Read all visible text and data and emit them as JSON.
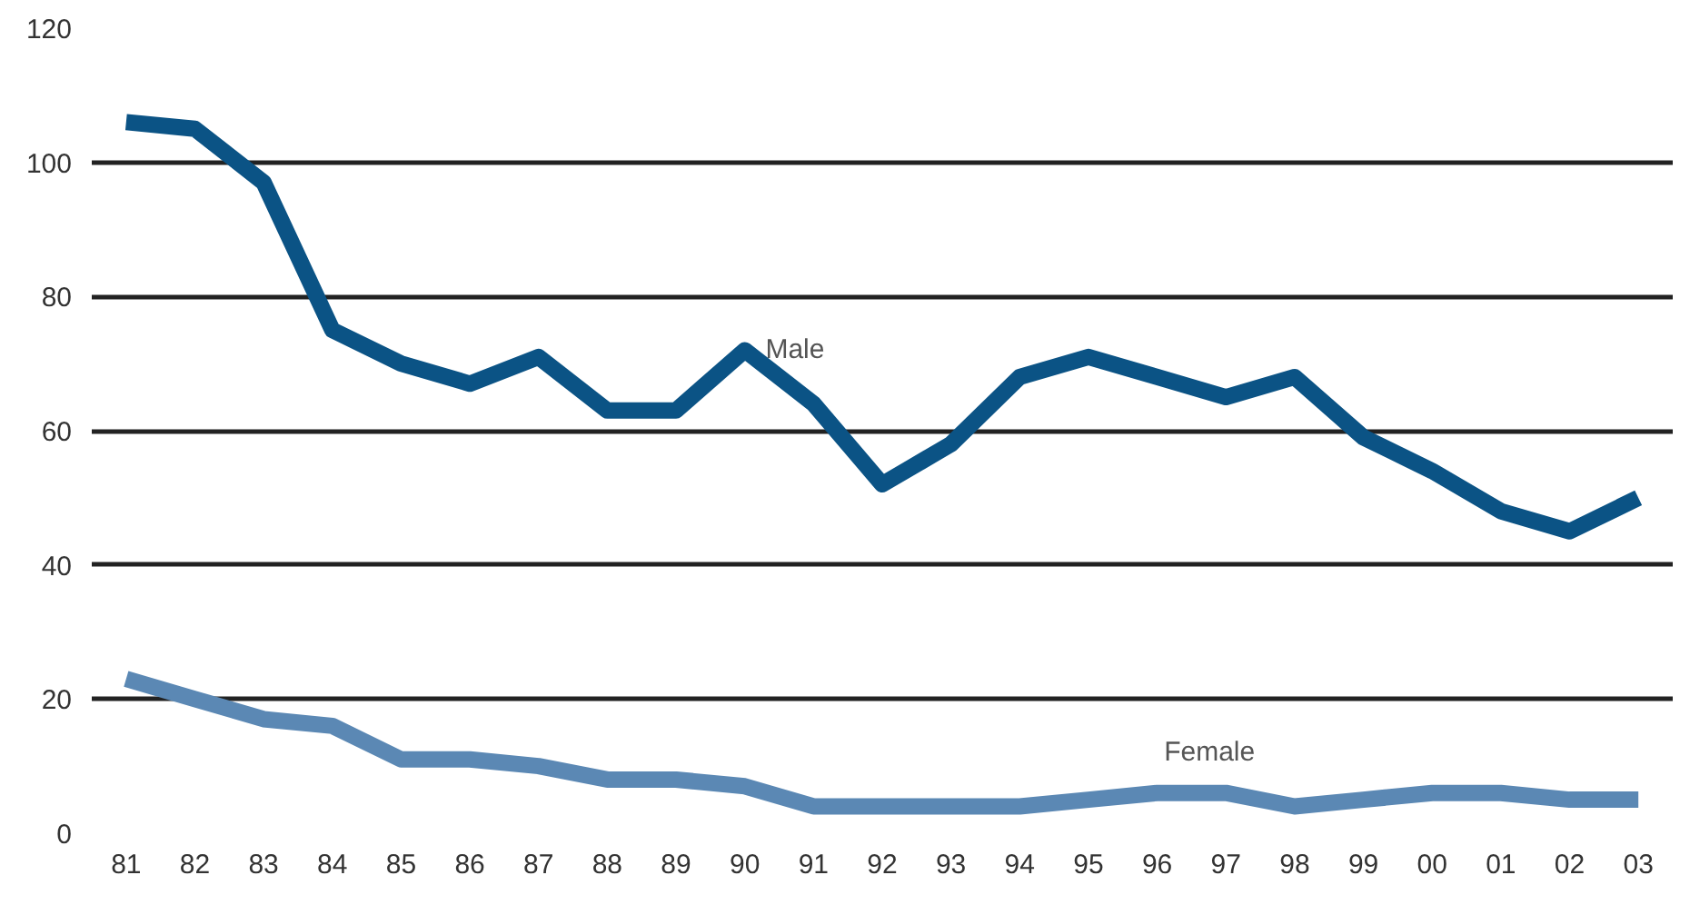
{
  "chart_data": {
    "type": "line",
    "categories": [
      "81",
      "82",
      "83",
      "84",
      "85",
      "86",
      "87",
      "88",
      "89",
      "90",
      "91",
      "92",
      "93",
      "94",
      "95",
      "96",
      "97",
      "98",
      "99",
      "00",
      "01",
      "02",
      "03"
    ],
    "series": [
      {
        "name": "Male",
        "color": "#0b5385",
        "values": [
          106,
          105,
          97,
          75,
          70,
          67,
          71,
          63,
          63,
          72,
          64,
          52,
          58,
          68,
          71,
          68,
          65,
          68,
          59,
          54,
          48,
          45,
          50
        ]
      },
      {
        "name": "Female",
        "color": "#5b88b4",
        "values": [
          23,
          20,
          17,
          16,
          11,
          11,
          10,
          8,
          8,
          7,
          4,
          4,
          4,
          4,
          5,
          6,
          6,
          4,
          5,
          6,
          6,
          5,
          5
        ]
      }
    ],
    "ylim": [
      0,
      120
    ],
    "yticks": [
      0,
      20,
      40,
      60,
      80,
      100,
      120
    ],
    "grid": "y",
    "legend": false,
    "marker": "none",
    "line_style": "solid"
  }
}
